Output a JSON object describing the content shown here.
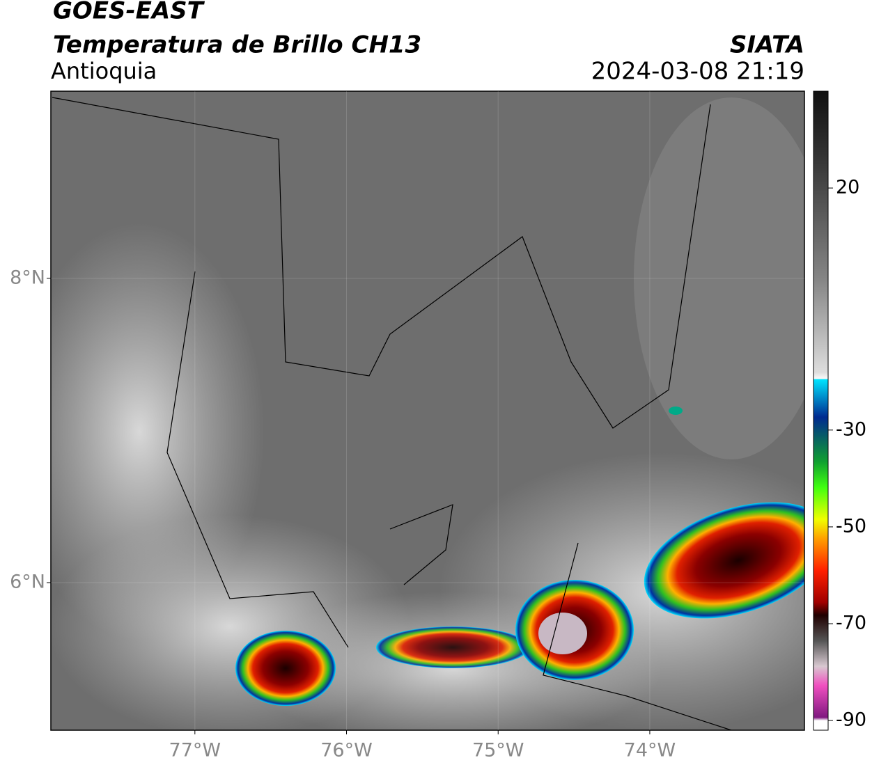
{
  "header": {
    "title": "GOES-EAST",
    "subtitle": "Temperatura de Brillo CH13",
    "region": "Antioquia",
    "source": "SIATA",
    "datetime": "2024-03-08 21:19"
  },
  "map": {
    "xlim": [
      -77.95,
      -72.98
    ],
    "ylim": [
      5.03,
      9.23
    ],
    "xticks": [
      {
        "value": -77,
        "label": "77°W"
      },
      {
        "value": -76,
        "label": "76°W"
      },
      {
        "value": -75,
        "label": "75°W"
      },
      {
        "value": -74,
        "label": "74°W"
      }
    ],
    "yticks": [
      {
        "value": 6,
        "label": "6°N"
      },
      {
        "value": 8,
        "label": "8°N"
      }
    ]
  },
  "colorbar": {
    "lim": [
      -92,
      40
    ],
    "ticks": [
      20,
      -30,
      -50,
      -70,
      -90
    ]
  }
}
